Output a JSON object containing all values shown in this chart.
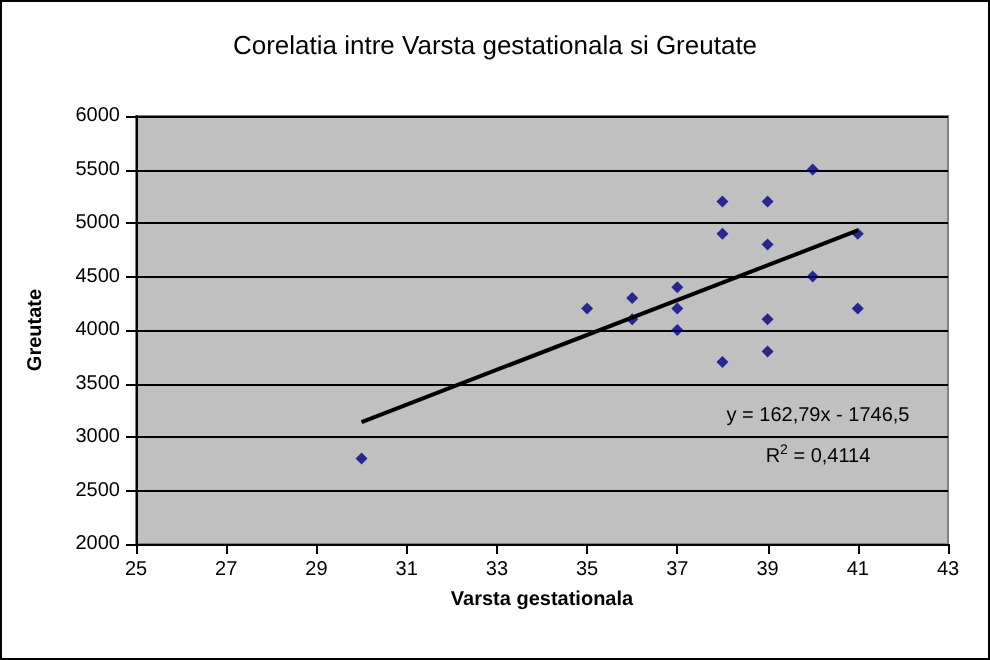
{
  "chart_data": {
    "type": "scatter",
    "title": "Corelatia intre Varsta gestationala si Greutate",
    "xlabel": "Varsta gestationala",
    "ylabel": "Greutate",
    "x": [
      30,
      35,
      36,
      36,
      37,
      37,
      37,
      38,
      38,
      38,
      39,
      39,
      39,
      39,
      40,
      40,
      41,
      41
    ],
    "series": [
      {
        "color": "#000080",
        "marker": "diamond",
        "values": [
          2800,
          4200,
          4300,
          4100,
          4400,
          4200,
          4000,
          5200,
          4900,
          3700,
          5200,
          4800,
          4100,
          3800,
          5500,
          4500,
          4900,
          4200
        ]
      },
      {
        "type": "line",
        "color": "#000000",
        "marker": "none",
        "x": [
          30,
          41
        ],
        "values": [
          3140,
          4930
        ]
      }
    ],
    "xlim": [
      25,
      43
    ],
    "xticks": [
      25,
      27,
      29,
      31,
      33,
      35,
      37,
      39,
      41,
      43
    ],
    "ylim": [
      2000,
      6000
    ],
    "yticks": [
      2000,
      2500,
      3000,
      3500,
      4000,
      4500,
      5000,
      5500,
      6000
    ],
    "grid": "y",
    "annotations": [
      "y = 162,79x - 1746,5",
      "R$^{2}$ = 0,4114"
    ]
  }
}
